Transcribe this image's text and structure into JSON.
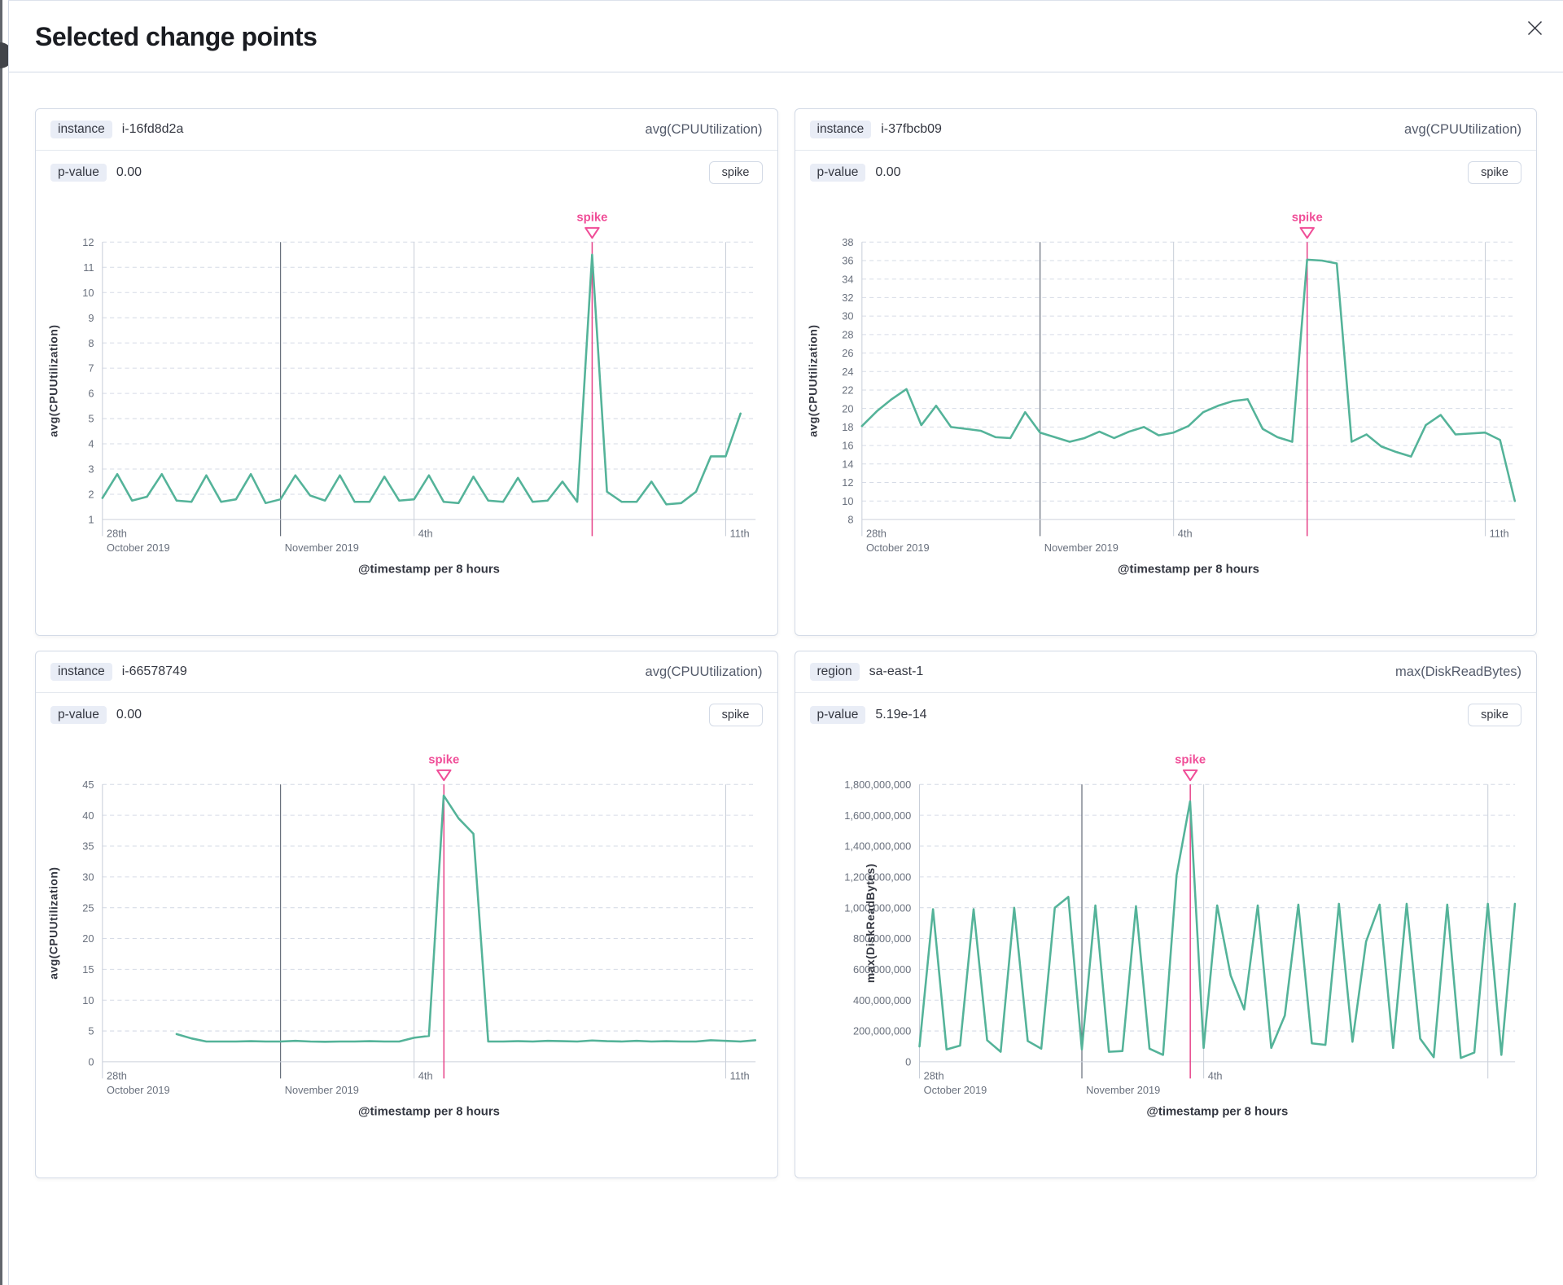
{
  "modal": {
    "title": "Selected change points"
  },
  "theme": {
    "accent": "#f04e98",
    "accent_line": "#e7478b",
    "line": "#54b399",
    "grid": "#d6dbe6",
    "vgrid": "#c9cfd9",
    "dark_grid": "#69707d",
    "axis": "#ccd1db",
    "text": "#343741",
    "subdued": "#69707d"
  },
  "panels": [
    {
      "badge": "instance",
      "badge_value": "i-16fd8d2a",
      "metric": "avg(CPUUtilization)",
      "pvalue_label": "p-value",
      "pvalue": "0.00",
      "type_label": "spike",
      "chart_data": {
        "type": "line",
        "xlabel": "@timestamp per 8 hours",
        "ylabel": "avg(CPUUtilization)",
        "ylim": [
          1,
          12
        ],
        "ytick_step": 1,
        "x_domain_days": [
          0,
          14.67
        ],
        "x_start_day": 0,
        "x_step_day": 0.3333,
        "xgrid": [
          {
            "day": 0,
            "label": "28th",
            "sublabel": "October 2019",
            "dark": false
          },
          {
            "day": 4,
            "label": "",
            "sublabel": "November 2019",
            "dark": true
          },
          {
            "day": 7,
            "label": "4th",
            "sublabel": "",
            "dark": false
          },
          {
            "day": 14,
            "label": "11th",
            "sublabel": "",
            "dark": false
          }
        ],
        "annotation": {
          "label": "spike",
          "day": 11.0
        },
        "values": [
          1.85,
          2.8,
          1.75,
          1.9,
          2.8,
          1.75,
          1.7,
          2.75,
          1.7,
          1.8,
          2.8,
          1.65,
          1.8,
          2.75,
          1.95,
          1.75,
          2.75,
          1.7,
          1.7,
          2.7,
          1.75,
          1.8,
          2.75,
          1.7,
          1.65,
          2.7,
          1.75,
          1.7,
          2.65,
          1.7,
          1.75,
          2.5,
          1.7,
          11.5,
          2.1,
          1.7,
          1.7,
          2.5,
          1.6,
          1.65,
          2.1,
          3.5,
          3.5,
          5.2
        ]
      }
    },
    {
      "badge": "instance",
      "badge_value": "i-37fbcb09",
      "metric": "avg(CPUUtilization)",
      "pvalue_label": "p-value",
      "pvalue": "0.00",
      "type_label": "spike",
      "chart_data": {
        "type": "line",
        "xlabel": "@timestamp per 8 hours",
        "ylabel": "avg(CPUUtilization)",
        "ylim": [
          8,
          38
        ],
        "ytick_step": 2,
        "x_domain_days": [
          0,
          14.67
        ],
        "x_start_day": 0,
        "x_step_day": 0.3333,
        "xgrid": [
          {
            "day": 0,
            "label": "28th",
            "sublabel": "October 2019",
            "dark": false
          },
          {
            "day": 4,
            "label": "",
            "sublabel": "November 2019",
            "dark": true
          },
          {
            "day": 7,
            "label": "4th",
            "sublabel": "",
            "dark": false
          },
          {
            "day": 14,
            "label": "11th",
            "sublabel": "",
            "dark": false
          }
        ],
        "annotation": {
          "label": "spike",
          "day": 10.0
        },
        "values": [
          18.1,
          19.7,
          21.0,
          22.1,
          18.2,
          20.3,
          18.0,
          17.8,
          17.6,
          16.9,
          16.8,
          19.6,
          17.4,
          16.9,
          16.4,
          16.8,
          17.5,
          16.8,
          17.5,
          18.0,
          17.1,
          17.4,
          18.1,
          19.6,
          20.3,
          20.8,
          21.0,
          17.8,
          16.9,
          16.4,
          36.1,
          36.0,
          35.7,
          16.4,
          17.2,
          15.9,
          15.3,
          14.8,
          18.2,
          19.3,
          17.2,
          17.3,
          17.4,
          16.6,
          10.0
        ]
      }
    },
    {
      "badge": "instance",
      "badge_value": "i-66578749",
      "metric": "avg(CPUUtilization)",
      "pvalue_label": "p-value",
      "pvalue": "0.00",
      "type_label": "spike",
      "chart_data": {
        "type": "line",
        "xlabel": "@timestamp per 8 hours",
        "ylabel": "avg(CPUUtilization)",
        "ylim": [
          0,
          45
        ],
        "ytick_step": 5,
        "x_domain_days": [
          0,
          14.67
        ],
        "x_start_day": 0,
        "x_step_day": 0.3333,
        "xgrid": [
          {
            "day": 0,
            "label": "28th",
            "sublabel": "October 2019",
            "dark": false
          },
          {
            "day": 4,
            "label": "",
            "sublabel": "November 2019",
            "dark": true
          },
          {
            "day": 7,
            "label": "4th",
            "sublabel": "",
            "dark": false
          },
          {
            "day": 14,
            "label": "11th",
            "sublabel": "",
            "dark": false
          }
        ],
        "annotation": {
          "label": "spike",
          "day": 7.67
        },
        "values": [
          null,
          null,
          null,
          null,
          null,
          4.5,
          3.8,
          3.3,
          3.3,
          3.3,
          3.35,
          3.3,
          3.3,
          3.4,
          3.3,
          3.25,
          3.3,
          3.3,
          3.35,
          3.3,
          3.3,
          3.9,
          4.2,
          43.2,
          39.5,
          37.0,
          3.3,
          3.3,
          3.35,
          3.3,
          3.4,
          3.35,
          3.3,
          3.45,
          3.35,
          3.3,
          3.4,
          3.3,
          3.35,
          3.3,
          3.3,
          3.5,
          3.4,
          3.3,
          3.5
        ]
      }
    },
    {
      "badge": "region",
      "badge_value": "sa-east-1",
      "metric": "max(DiskReadBytes)",
      "pvalue_label": "p-value",
      "pvalue": "5.19e-14",
      "type_label": "spike",
      "chart_data": {
        "type": "line",
        "xlabel": "@timestamp per 8 hours",
        "ylabel": "max(DiskReadBytes)",
        "ylim": [
          0,
          1800000000
        ],
        "ytick_step": 200000000,
        "yformat": "comma",
        "x_domain_days": [
          0,
          14.67
        ],
        "x_start_day": 0,
        "x_step_day": 0.3333,
        "xgrid": [
          {
            "day": 0,
            "label": "28th",
            "sublabel": "October 2019",
            "dark": false
          },
          {
            "day": 4,
            "label": "",
            "sublabel": "November 2019",
            "dark": true
          },
          {
            "day": 7,
            "label": "4th",
            "sublabel": "",
            "dark": false
          },
          {
            "day": 14,
            "label": "",
            "sublabel": "",
            "dark": false
          }
        ],
        "annotation": {
          "label": "spike",
          "day": 6.67
        },
        "values": [
          100000000,
          990000000,
          80000000,
          105000000,
          990000000,
          140000000,
          65000000,
          1000000000,
          135000000,
          85000000,
          1000000000,
          1070000000,
          80000000,
          1015000000,
          65000000,
          70000000,
          1010000000,
          85000000,
          45000000,
          1210000000,
          1690000000,
          90000000,
          1015000000,
          560000000,
          340000000,
          1015000000,
          90000000,
          300000000,
          1020000000,
          120000000,
          110000000,
          1025000000,
          130000000,
          780000000,
          1020000000,
          90000000,
          1025000000,
          150000000,
          30000000,
          1020000000,
          25000000,
          60000000,
          1025000000,
          45000000,
          1025000000
        ]
      }
    }
  ]
}
